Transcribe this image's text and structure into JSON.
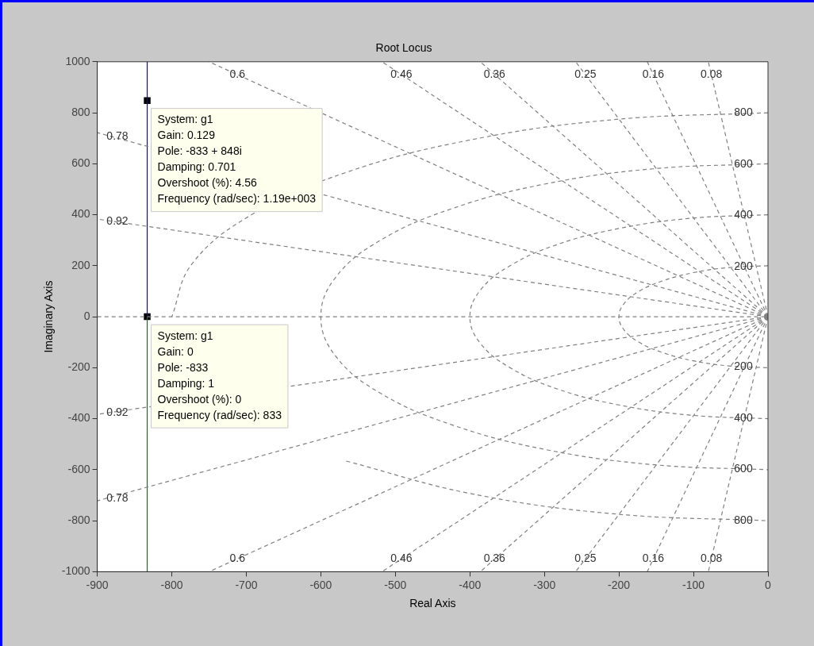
{
  "chart_data": {
    "type": "line",
    "title": "Root Locus",
    "xlabel": "Real Axis",
    "ylabel": "Imaginary Axis",
    "xlim": [
      -900,
      0
    ],
    "ylim": [
      -1000,
      1000
    ],
    "xticks": [
      -900,
      -800,
      -700,
      -600,
      -500,
      -400,
      -300,
      -200,
      -100,
      0
    ],
    "yticks": [
      -1000,
      -800,
      -600,
      -400,
      -200,
      0,
      200,
      400,
      600,
      800,
      1000
    ],
    "series": [
      {
        "color": "#808080",
        "line_style": "dashed",
        "x": [
          -900,
          0
        ],
        "values": [
          0,
          0
        ]
      },
      {
        "color": "#808080",
        "line_style": "dashed",
        "x": [
          0,
          -80
        ],
        "values": [
          0,
          1000
        ]
      },
      {
        "color": "#808080",
        "line_style": "dashed",
        "x": [
          0,
          -80
        ],
        "values": [
          0,
          -1000
        ]
      },
      {
        "color": "#808080",
        "line_style": "dashed",
        "x": [
          0,
          -162
        ],
        "values": [
          0,
          1000
        ]
      },
      {
        "color": "#808080",
        "line_style": "dashed",
        "x": [
          0,
          -162
        ],
        "values": [
          0,
          -1000
        ]
      },
      {
        "color": "#808080",
        "line_style": "dashed",
        "x": [
          0,
          -258
        ],
        "values": [
          0,
          1000
        ]
      },
      {
        "color": "#808080",
        "line_style": "dashed",
        "x": [
          0,
          -258
        ],
        "values": [
          0,
          -1000
        ]
      },
      {
        "color": "#808080",
        "line_style": "dashed",
        "x": [
          0,
          -386
        ],
        "values": [
          0,
          1000
        ]
      },
      {
        "color": "#808080",
        "line_style": "dashed",
        "x": [
          0,
          -386
        ],
        "values": [
          0,
          -1000
        ]
      },
      {
        "color": "#808080",
        "line_style": "dashed",
        "x": [
          0,
          -518
        ],
        "values": [
          0,
          1000
        ]
      },
      {
        "color": "#808080",
        "line_style": "dashed",
        "x": [
          0,
          -518
        ],
        "values": [
          0,
          -1000
        ]
      },
      {
        "color": "#808080",
        "line_style": "dashed",
        "x": [
          0,
          -750
        ],
        "values": [
          0,
          1000
        ]
      },
      {
        "color": "#808080",
        "line_style": "dashed",
        "x": [
          0,
          -750
        ],
        "values": [
          0,
          -1000
        ]
      },
      {
        "color": "#808080",
        "line_style": "dashed",
        "x": [
          0,
          -900
        ],
        "values": [
          0,
          722
        ]
      },
      {
        "color": "#808080",
        "line_style": "dashed",
        "x": [
          0,
          -900
        ],
        "values": [
          0,
          -722
        ]
      },
      {
        "color": "#808080",
        "line_style": "dashed",
        "x": [
          0,
          -900
        ],
        "values": [
          0,
          383
        ]
      },
      {
        "color": "#808080",
        "line_style": "dashed",
        "x": [
          0,
          -900
        ],
        "values": [
          0,
          -383
        ]
      },
      {
        "color": "#808080",
        "line_style": "dashed",
        "x": [
          0,
          -52,
          -100,
          -141,
          -173,
          -193,
          -200,
          -193,
          -173,
          -141,
          -100,
          -52,
          0
        ],
        "values": [
          200,
          193,
          173,
          141,
          100,
          52,
          0,
          -52,
          -100,
          -141,
          -173,
          -193,
          -200
        ]
      },
      {
        "color": "#808080",
        "line_style": "dashed",
        "x": [
          0,
          -104,
          -200,
          -283,
          -346,
          -386,
          -400,
          -386,
          -346,
          -283,
          -200,
          -104,
          0
        ],
        "values": [
          400,
          386,
          346,
          283,
          200,
          104,
          0,
          -104,
          -200,
          -283,
          -346,
          -386,
          -400
        ]
      },
      {
        "color": "#808080",
        "line_style": "dashed",
        "x": [
          0,
          -155,
          -300,
          -424,
          -520,
          -580,
          -600,
          -580,
          -520,
          -424,
          -300,
          -155,
          0
        ],
        "values": [
          600,
          580,
          520,
          424,
          300,
          155,
          0,
          -155,
          -300,
          -424,
          -520,
          -580,
          -600
        ]
      },
      {
        "color": "#808080",
        "line_style": "dashed",
        "x": [
          0,
          -207,
          -400,
          -566,
          -693,
          -773,
          -800,
          -773,
          -693,
          -566,
          -400,
          -207,
          0
        ],
        "values": [
          800,
          773,
          693,
          566,
          400,
          207,
          0,
          null,
          null,
          -566,
          -693,
          -773,
          -800
        ]
      },
      {
        "color": "#0000ff",
        "line_style": "solid",
        "x": [
          -833,
          -833
        ],
        "values": [
          0,
          1000
        ]
      },
      {
        "color": "#008000",
        "line_style": "solid",
        "x": [
          -833,
          -833
        ],
        "values": [
          0,
          -1000
        ]
      },
      {
        "type": "scatter",
        "color": "#000000",
        "marker": "square",
        "x": [
          -833,
          -833
        ],
        "values": [
          848,
          0
        ]
      }
    ],
    "annotations": [
      {
        "text": "System: g1\nGain: 0.129\nPole: -833 + 848i\nDamping: 0.701\nOvershoot (%): 4.56\nFrequency (rad/sec): 1.19e+003",
        "x": -833,
        "y": 848
      },
      {
        "text": "System: g1\nGain: 0\nPole: -833\nDamping: 1\nOvershoot (%): 0\nFrequency (rad/sec): 833",
        "x": -833,
        "y": 0
      },
      {
        "text": "0.6",
        "x": -712,
        "y": 950
      },
      {
        "text": "0.46",
        "x": -492,
        "y": 950
      },
      {
        "text": "0.36",
        "x": -367,
        "y": 950
      },
      {
        "text": "0.25",
        "x": -245,
        "y": 950
      },
      {
        "text": "0.16",
        "x": -154,
        "y": 950
      },
      {
        "text": "0.08",
        "x": -76,
        "y": 950
      },
      {
        "text": "0.6",
        "x": -712,
        "y": -950
      },
      {
        "text": "0.46",
        "x": -492,
        "y": -950
      },
      {
        "text": "0.36",
        "x": -367,
        "y": -950
      },
      {
        "text": "0.25",
        "x": -245,
        "y": -950
      },
      {
        "text": "0.16",
        "x": -154,
        "y": -950
      },
      {
        "text": "0.08",
        "x": -76,
        "y": -950
      },
      {
        "text": "0.78",
        "x": -873,
        "y": 707
      },
      {
        "text": "0.92",
        "x": -873,
        "y": 372
      },
      {
        "text": "0.92",
        "x": -873,
        "y": -378
      },
      {
        "text": "0.78",
        "x": -873,
        "y": -713
      },
      {
        "text": "800",
        "x": -33,
        "y": 799
      },
      {
        "text": "600",
        "x": -33,
        "y": 599
      },
      {
        "text": "400",
        "x": -33,
        "y": 399
      },
      {
        "text": "200",
        "x": -33,
        "y": 197
      },
      {
        "text": "200",
        "x": -33,
        "y": -197
      },
      {
        "text": "400",
        "x": -33,
        "y": -399
      },
      {
        "text": "600",
        "x": -33,
        "y": -599
      },
      {
        "text": "800",
        "x": -33,
        "y": -799
      }
    ]
  }
}
